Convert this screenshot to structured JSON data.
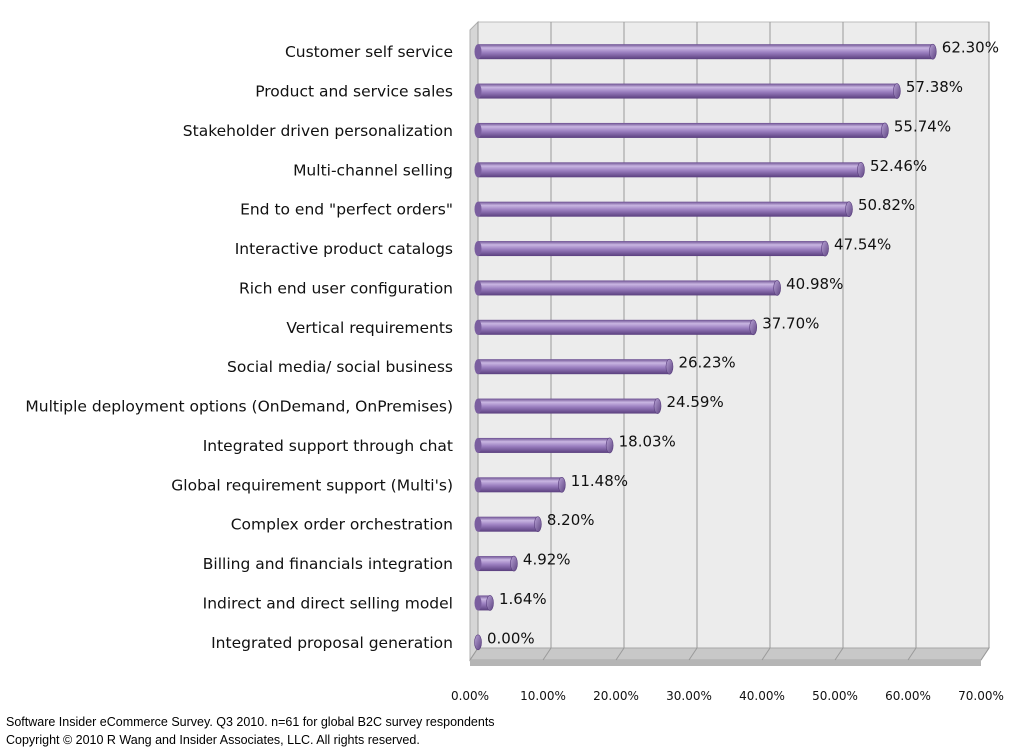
{
  "chart_data": {
    "type": "bar",
    "orientation": "horizontal",
    "categories": [
      "Customer self service",
      "Product and service sales",
      "Stakeholder driven personalization",
      "Multi-channel selling",
      "End to end \"perfect orders\"",
      "Interactive product catalogs",
      "Rich end user configuration",
      "Vertical requirements",
      "Social media/ social business",
      "Multiple deployment options (OnDemand, OnPremises)",
      "Integrated support through chat",
      "Global requirement support (Multi's)",
      "Complex order orchestration",
      "Billing and financials integration",
      "Indirect and direct selling model",
      "Integrated proposal generation"
    ],
    "values": [
      62.3,
      57.38,
      55.74,
      52.46,
      50.82,
      47.54,
      40.98,
      37.7,
      26.23,
      24.59,
      18.03,
      11.48,
      8.2,
      4.92,
      1.64,
      0.0
    ],
    "value_labels": [
      "62.30%",
      "57.38%",
      "55.74%",
      "52.46%",
      "50.82%",
      "47.54%",
      "40.98%",
      "37.70%",
      "26.23%",
      "24.59%",
      "18.03%",
      "11.48%",
      "8.20%",
      "4.92%",
      "1.64%",
      "0.00%"
    ],
    "x_ticks": [
      "0.00%",
      "10.00%",
      "20.00%",
      "30.00%",
      "40.00%",
      "50.00%",
      "60.00%",
      "70.00%"
    ],
    "xlim": [
      0,
      70
    ],
    "grid": true,
    "style": "3d-cylinder",
    "colors": {
      "bar": "#9b7fc0",
      "bar_dark": "#6b4f90",
      "bar_light": "#c9b6e2",
      "wall": "#ececec",
      "floor": "#c8c8c8",
      "grid": "#9a9a9a"
    }
  },
  "footer": {
    "line1": "Software Insider eCommerce Survey. Q3 2010.  n=61 for global B2C survey respondents",
    "line2": "Copyright © 2010 R Wang and Insider Associates, LLC. All rights reserved."
  }
}
